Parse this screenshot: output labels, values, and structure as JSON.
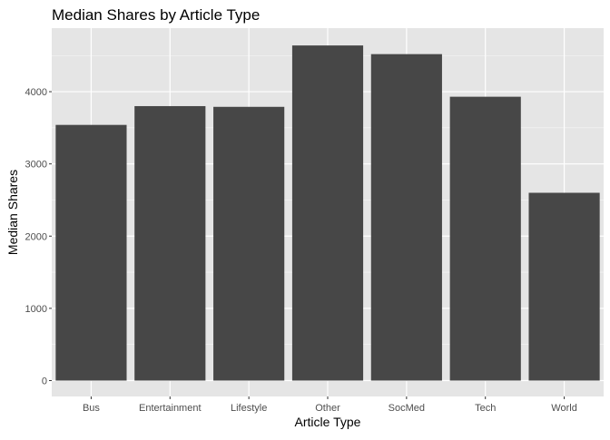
{
  "chart_data": {
    "type": "bar",
    "title": "Median Shares by Article Type",
    "xlabel": "Article Type",
    "ylabel": "Median Shares",
    "categories": [
      "Bus",
      "Entertainment",
      "Lifestyle",
      "Other",
      "SocMed",
      "Tech",
      "World"
    ],
    "values": [
      3540,
      3800,
      3790,
      4640,
      4520,
      3930,
      2600
    ],
    "y_ticks": [
      0,
      1000,
      2000,
      3000,
      4000
    ],
    "ylim": [
      -220,
      4880
    ],
    "grid": true,
    "legend": "none",
    "colors": {
      "bar": "#474747",
      "panel": "#e5e5e5",
      "grid_major": "#ffffff",
      "text": "#000000",
      "tick_text": "#4d4d4d",
      "tick_mark": "#333333"
    }
  }
}
